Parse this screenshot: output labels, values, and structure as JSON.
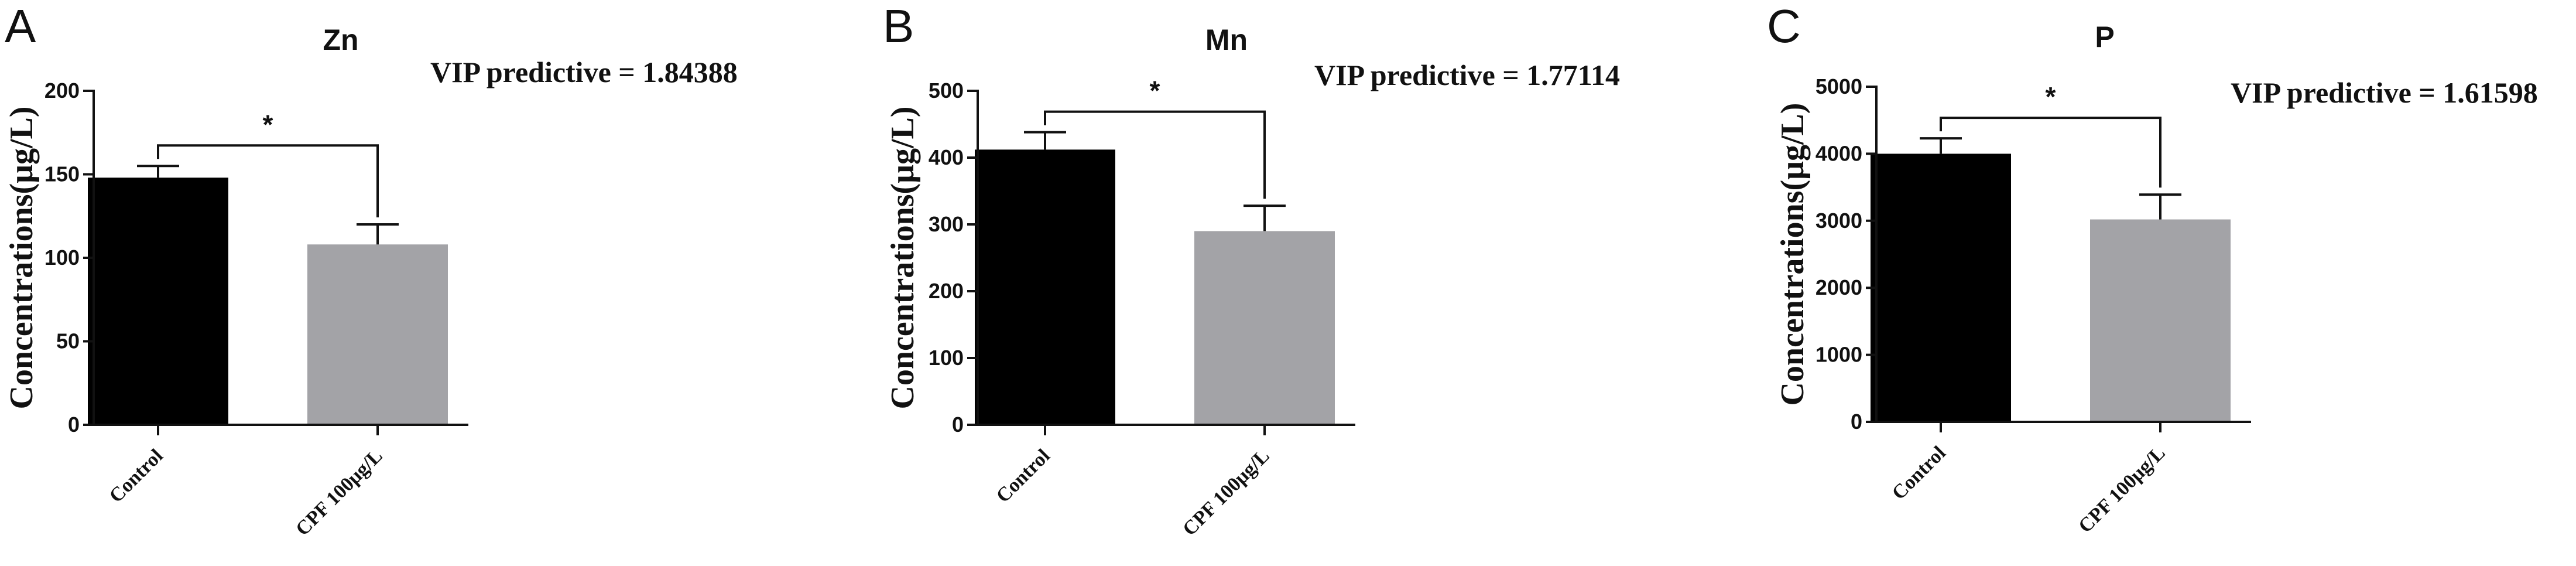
{
  "chart_data": [
    {
      "type": "bar",
      "panel": "A",
      "title": "Zn",
      "annotation": "VIP predictive = 1.84388",
      "significance": "*",
      "ylabel": "Concentrations(μg/L)",
      "ylim": [
        0,
        200
      ],
      "yticks": [
        0,
        50,
        100,
        150,
        200
      ],
      "categories": [
        "Control",
        "CPF 100μg/L"
      ],
      "values": [
        148,
        108
      ],
      "errors": [
        7,
        12
      ],
      "colors": [
        "#000000",
        "#a3a3a7"
      ]
    },
    {
      "type": "bar",
      "panel": "B",
      "title": "Mn",
      "annotation": "VIP predictive = 1.77114",
      "significance": "*",
      "ylabel": "Concentrations(μg/L)",
      "ylim": [
        0,
        500
      ],
      "yticks": [
        0,
        100,
        200,
        300,
        400,
        500
      ],
      "categories": [
        "Control",
        "CPF 100μg/L"
      ],
      "values": [
        412,
        290
      ],
      "errors": [
        26,
        38
      ],
      "colors": [
        "#000000",
        "#a3a3a7"
      ]
    },
    {
      "type": "bar",
      "panel": "C",
      "title": "P",
      "annotation": "VIP predictive = 1.61598",
      "significance": "*",
      "ylabel": "Concentrations(μg/L)",
      "ylim": [
        0,
        5000
      ],
      "yticks": [
        0,
        1000,
        2000,
        3000,
        4000,
        5000
      ],
      "categories": [
        "Control",
        "CPF 100μg/L"
      ],
      "values": [
        4000,
        3020
      ],
      "errors": [
        230,
        370
      ],
      "colors": [
        "#000000",
        "#a3a3a7"
      ]
    }
  ]
}
